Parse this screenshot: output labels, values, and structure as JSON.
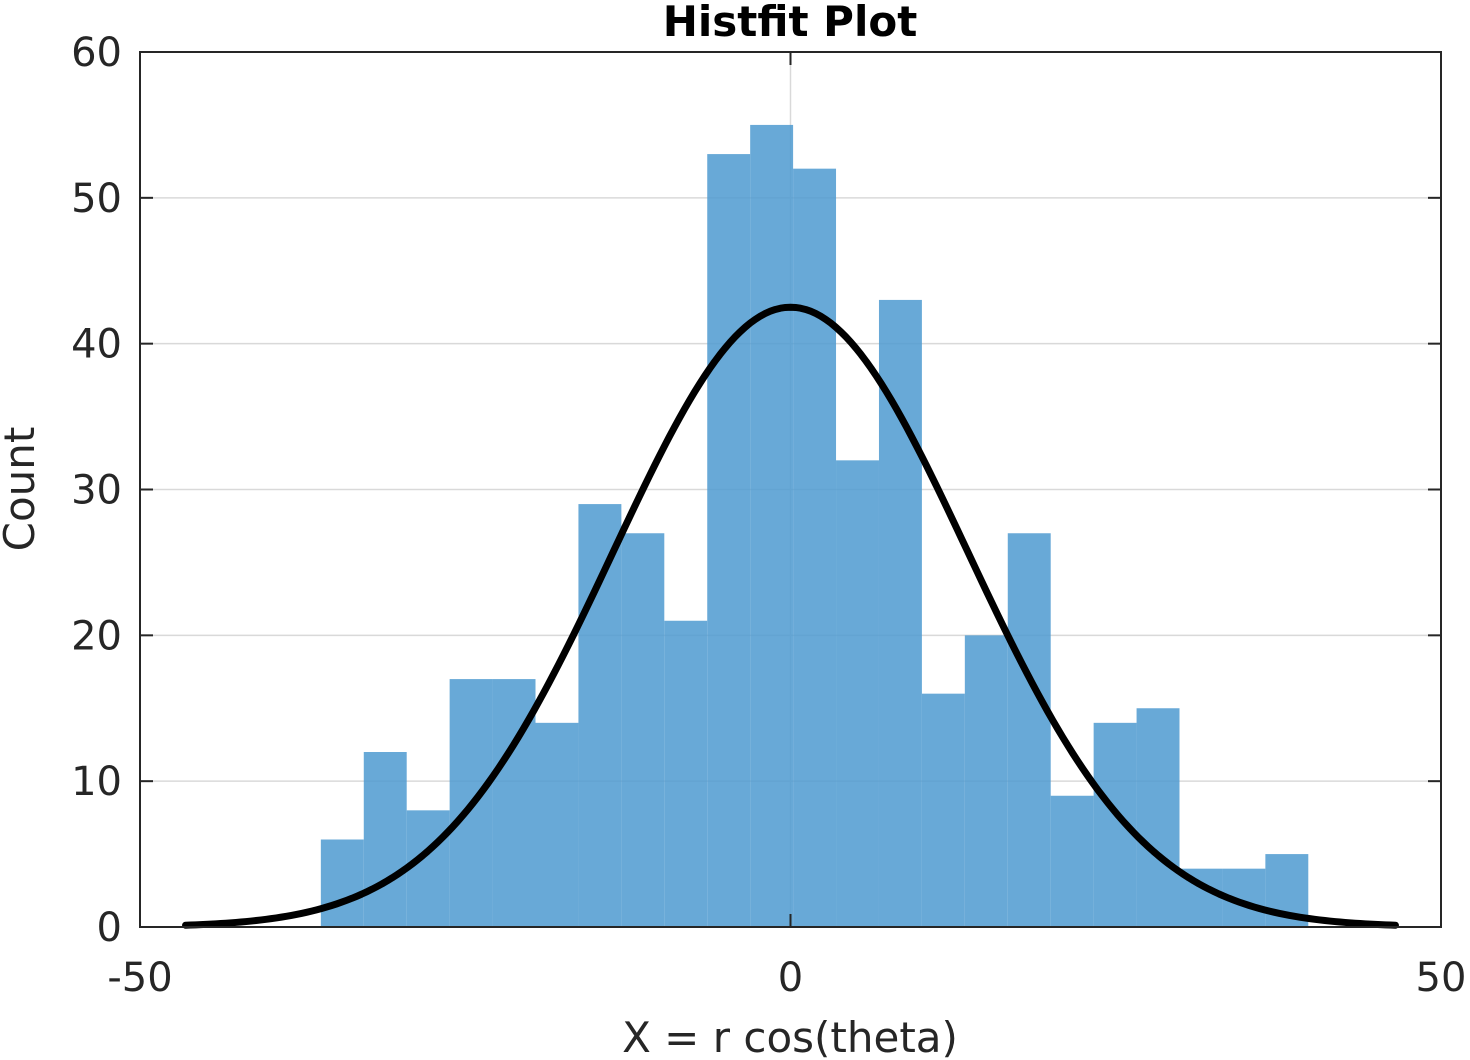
{
  "chart_data": {
    "type": "bar",
    "title": "Histfit Plot",
    "xlabel": "X = r cos(theta)",
    "ylabel": "Count",
    "xlim": [
      -50,
      50
    ],
    "ylim": [
      0,
      60
    ],
    "grid": true,
    "x_ticks": [
      -50,
      0,
      50
    ],
    "y_ticks": [
      0,
      10,
      20,
      30,
      40,
      50,
      60
    ],
    "x_tick_labels": [
      "-50",
      "0",
      "50"
    ],
    "y_tick_labels": [
      "0",
      "10",
      "20",
      "30",
      "40",
      "50",
      "60"
    ],
    "bin_edges": [
      -36.1,
      -32.8,
      -29.5,
      -26.2,
      -22.9,
      -19.6,
      -16.3,
      -13.0,
      -9.7,
      -6.4,
      -3.1,
      0.2,
      3.5,
      6.8,
      10.1,
      13.4,
      16.7,
      20.0,
      23.3,
      26.6,
      29.9,
      33.2,
      36.5,
      39.8
    ],
    "counts": [
      6,
      12,
      8,
      17,
      17,
      14,
      29,
      27,
      21,
      53,
      55,
      52,
      32,
      43,
      16,
      20,
      27,
      9,
      14,
      15,
      4,
      4,
      5
    ],
    "fit_curve": {
      "type": "normal",
      "mean": 0.0,
      "sigma": 13.6,
      "peak": 42.5,
      "x_range": [
        -46.5,
        46.5
      ]
    },
    "colors": {
      "bars": "#4f9bd1",
      "bar_opacity": 0.86,
      "curve": "#000000",
      "grid": "#d9d9d9",
      "axes": "#262626"
    }
  }
}
